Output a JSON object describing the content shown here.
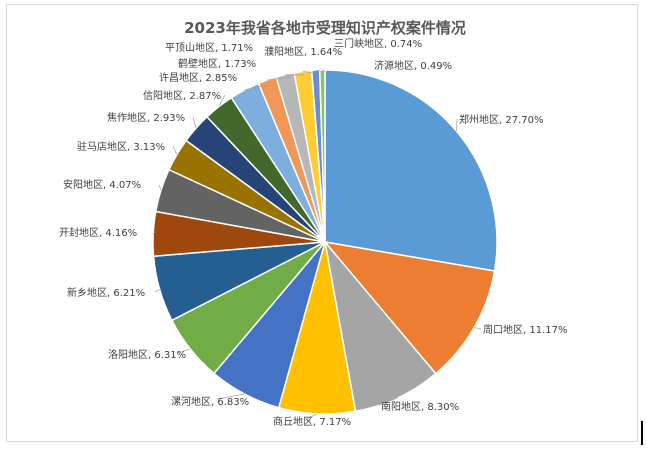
{
  "chart_data": {
    "type": "pie",
    "title": "2023年我省各地市受理知识产权案件情况",
    "slices": [
      {
        "label": "郑州地区",
        "value": 27.7,
        "display": "27.70%",
        "color": "#5b9bd5"
      },
      {
        "label": "周口地区",
        "value": 11.17,
        "display": "11.17%",
        "color": "#ed7d31"
      },
      {
        "label": "南阳地区",
        "value": 8.3,
        "display": "8.30%",
        "color": "#a5a5a5"
      },
      {
        "label": "商丘地区",
        "value": 7.17,
        "display": "7.17%",
        "color": "#ffc000"
      },
      {
        "label": "漯河地区",
        "value": 6.83,
        "display": "6.83%",
        "color": "#4472c4"
      },
      {
        "label": "洛阳地区",
        "value": 6.31,
        "display": "6.31%",
        "color": "#70ad47"
      },
      {
        "label": "新乡地区",
        "value": 6.21,
        "display": "6.21%",
        "color": "#255e91"
      },
      {
        "label": "开封地区",
        "value": 4.16,
        "display": "4.16%",
        "color": "#9e480e"
      },
      {
        "label": "安阳地区",
        "value": 4.07,
        "display": "4.07%",
        "color": "#636363"
      },
      {
        "label": "驻马店地区",
        "value": 3.13,
        "display": "3.13%",
        "color": "#997300"
      },
      {
        "label": "焦作地区",
        "value": 2.93,
        "display": "2.93%",
        "color": "#264478"
      },
      {
        "label": "信阳地区",
        "value": 2.87,
        "display": "2.87%",
        "color": "#43682b"
      },
      {
        "label": "许昌地区",
        "value": 2.85,
        "display": "2.85%",
        "color": "#7cafdd"
      },
      {
        "label": "鹤壁地区",
        "value": 1.73,
        "display": "1.73%",
        "color": "#f1975a"
      },
      {
        "label": "平顶山地区",
        "value": 1.71,
        "display": "1.71%",
        "color": "#b7b7b7"
      },
      {
        "label": "濮阳地区",
        "value": 1.64,
        "display": "1.64%",
        "color": "#ffcd33"
      },
      {
        "label": "三门峡地区",
        "value": 0.74,
        "display": "0.74%",
        "color": "#698ed0"
      },
      {
        "label": "济源地区",
        "value": 0.49,
        "display": "0.49%",
        "color": "#8cc168"
      }
    ]
  }
}
